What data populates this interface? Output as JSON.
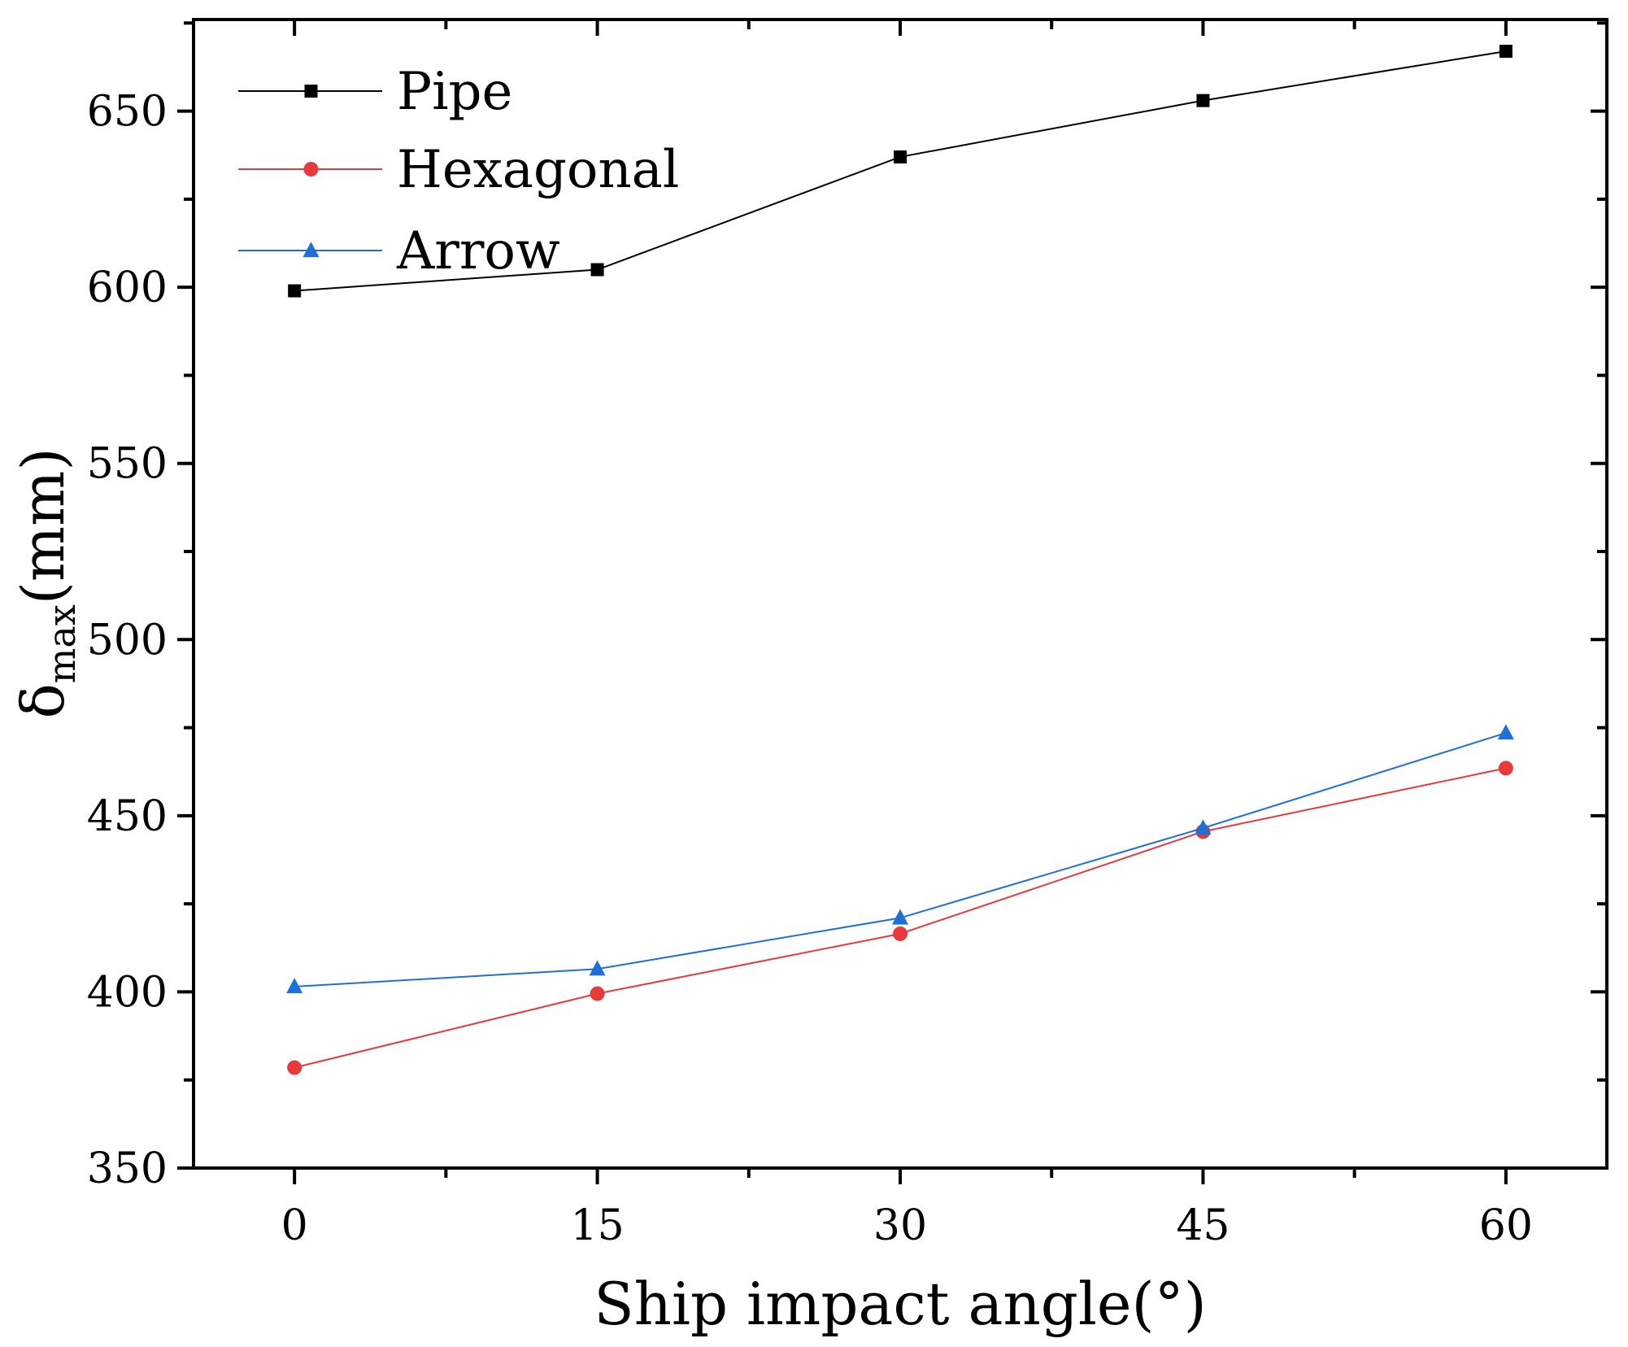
{
  "chart_data": {
    "type": "line",
    "title": "",
    "xlabel": "Ship impact angle(°)",
    "ylabel": {
      "symbol": "δ",
      "subscript": "max",
      "unit": "(mm)"
    },
    "x": [
      0,
      15,
      30,
      45,
      60
    ],
    "x_ticks": [
      "0",
      "15",
      "30",
      "45",
      "60"
    ],
    "y_ticks": [
      "350",
      "400",
      "450",
      "500",
      "550",
      "600",
      "650"
    ],
    "xlim": [
      -5,
      65
    ],
    "ylim": [
      350,
      676
    ],
    "legend_position": "top-left",
    "series": [
      {
        "name": "Pipe",
        "marker": "square",
        "color": "#000000",
        "values": [
          599,
          605,
          637,
          653,
          667
        ]
      },
      {
        "name": "Hexagonal",
        "marker": "circle",
        "color": "#e8393d",
        "values": [
          378.5,
          399.5,
          416.5,
          445.5,
          463.5
        ]
      },
      {
        "name": "Arrow",
        "marker": "triangle",
        "color": "#1f6fd9",
        "values": [
          401.5,
          406.5,
          421,
          446.5,
          473.5
        ]
      }
    ]
  }
}
